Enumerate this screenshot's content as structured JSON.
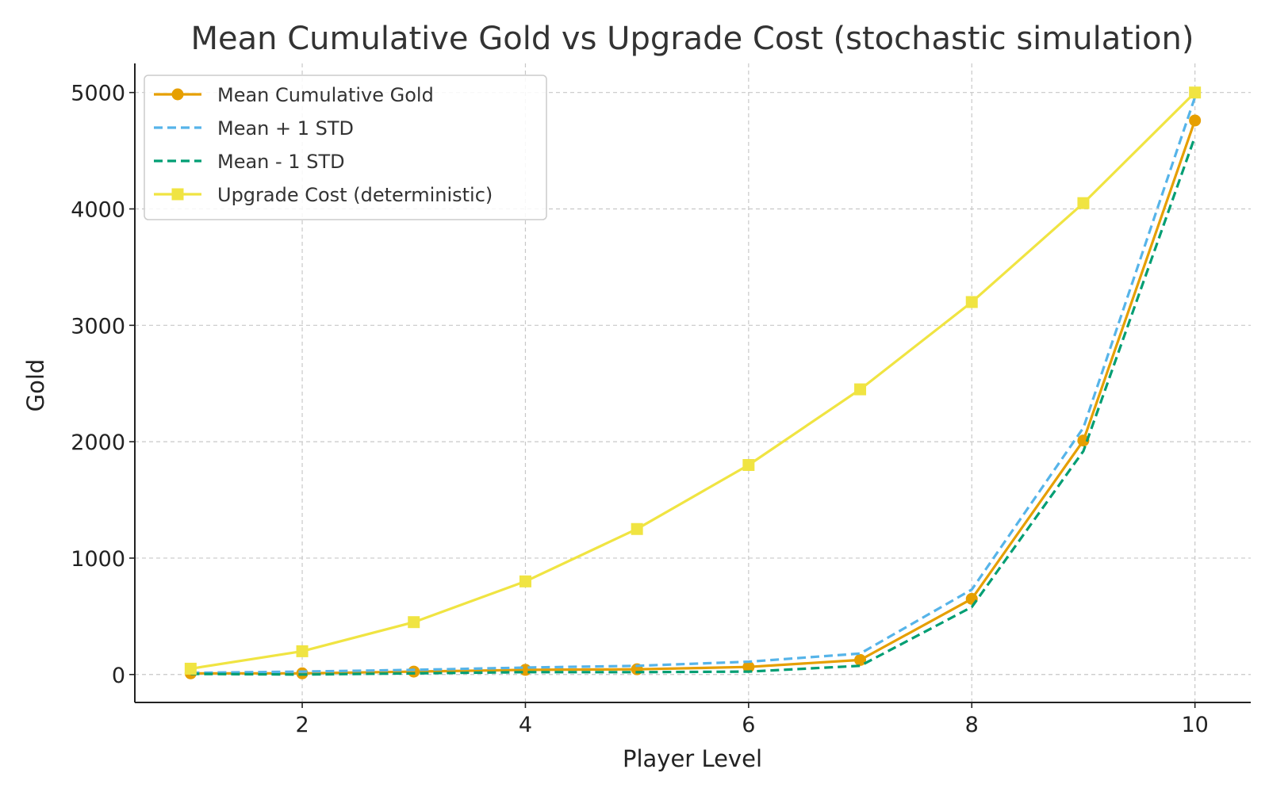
{
  "chart_data": {
    "type": "line",
    "title": "Mean Cumulative Gold vs Upgrade Cost (stochastic simulation)",
    "xlabel": "Player Level",
    "ylabel": "Gold",
    "x": [
      1,
      2,
      3,
      4,
      5,
      6,
      7,
      8,
      9,
      10
    ],
    "xlim": [
      0.5,
      10.5
    ],
    "ylim": [
      -240,
      5250
    ],
    "xticks": [
      2,
      4,
      6,
      8,
      10
    ],
    "yticks": [
      0,
      1000,
      2000,
      3000,
      4000,
      5000
    ],
    "grid": true,
    "legend_position": "top-left",
    "series": [
      {
        "name": "Mean Cumulative Gold",
        "values": [
          10,
          10,
          25,
          40,
          45,
          65,
          125,
          650,
          2010,
          4760
        ],
        "color": "#E69F00",
        "style": "solid",
        "marker": "circle"
      },
      {
        "name": "Mean + 1 STD",
        "values": [
          15,
          25,
          40,
          60,
          75,
          110,
          180,
          730,
          2120,
          4960
        ],
        "color": "#56B4E9",
        "style": "dashed",
        "marker": "none"
      },
      {
        "name": "Mean - 1 STD",
        "values": [
          5,
          0,
          10,
          20,
          20,
          25,
          75,
          580,
          1920,
          4620
        ],
        "color": "#009E73",
        "style": "dashed",
        "marker": "none"
      },
      {
        "name": "Upgrade Cost (deterministic)",
        "values": [
          50,
          200,
          450,
          800,
          1250,
          1800,
          2450,
          3200,
          4050,
          5000
        ],
        "color": "#F0E442",
        "style": "solid",
        "marker": "square"
      }
    ]
  }
}
